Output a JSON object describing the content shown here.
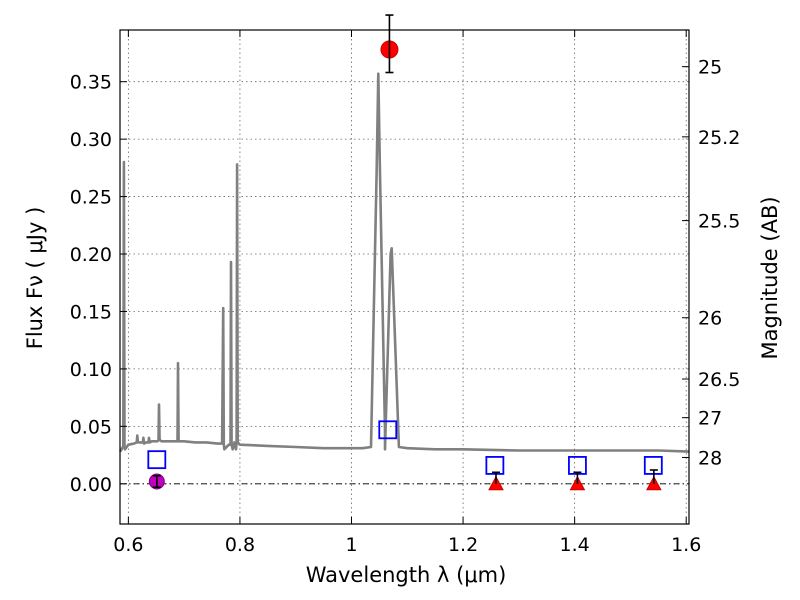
{
  "chart_data": {
    "type": "scatter",
    "xlabel": "Wavelength  λ (μm)",
    "ylabel": "Flux  Fν  ( μJy )",
    "y2label": "Magnitude (AB)",
    "xlim": [
      0.585,
      1.605
    ],
    "ylim": [
      -0.035,
      0.395
    ],
    "grid": true,
    "x_ticks": [
      0.6,
      0.8,
      1.0,
      1.2,
      1.4,
      1.6
    ],
    "x_tick_labels": [
      "0.6",
      "0.8",
      "1",
      "1.2",
      "1.4",
      "1.6"
    ],
    "y_ticks": [
      0.0,
      0.05,
      0.1,
      0.15,
      0.2,
      0.25,
      0.3,
      0.35
    ],
    "y_tick_labels": [
      "0.00",
      "0.05",
      "0.10",
      "0.15",
      "0.20",
      "0.25",
      "0.30",
      "0.35"
    ],
    "mag_ticks": [
      25,
      25.2,
      25.5,
      26,
      26.5,
      27,
      28
    ],
    "mag_tick_labels": [
      "25",
      "25.2",
      "25.5",
      "26",
      "26.5",
      "27",
      "28"
    ],
    "colors": {
      "model": "#808080",
      "model_photometry": "#0000ff",
      "observed_detection": "#ff0000",
      "upper_limit": "#ff0000",
      "optical_point": "#bf00bf",
      "errorbar": "#000000",
      "zero_line": "#000000"
    },
    "model_spectrum": {
      "x": [
        0.585,
        0.588,
        0.591,
        0.592,
        0.593,
        0.594,
        0.6,
        0.61,
        0.615,
        0.616,
        0.617,
        0.62,
        0.626,
        0.627,
        0.628,
        0.632,
        0.636,
        0.637,
        0.638,
        0.642,
        0.648,
        0.652,
        0.654,
        0.655,
        0.656,
        0.66,
        0.67,
        0.685,
        0.688,
        0.689,
        0.69,
        0.7,
        0.72,
        0.74,
        0.76,
        0.768,
        0.77,
        0.771,
        0.772,
        0.78,
        0.783,
        0.784,
        0.785,
        0.787,
        0.789,
        0.79,
        0.791,
        0.793,
        0.794,
        0.795,
        0.796,
        0.8,
        0.85,
        0.9,
        0.95,
        1.0,
        1.02,
        1.035,
        1.045,
        1.048,
        1.051,
        1.06,
        1.06,
        1.07,
        1.072,
        1.08,
        1.085,
        1.1,
        1.15,
        1.2,
        1.3,
        1.4,
        1.45,
        1.5,
        1.55,
        1.605
      ],
      "y": [
        0.028,
        0.03,
        0.033,
        0.28,
        0.033,
        0.03,
        0.034,
        0.035,
        0.036,
        0.042,
        0.036,
        0.036,
        0.036,
        0.04,
        0.035,
        0.036,
        0.036,
        0.04,
        0.036,
        0.037,
        0.037,
        0.037,
        0.038,
        0.069,
        0.038,
        0.037,
        0.037,
        0.037,
        0.037,
        0.105,
        0.037,
        0.037,
        0.036,
        0.036,
        0.035,
        0.035,
        0.153,
        0.035,
        0.03,
        0.034,
        0.034,
        0.193,
        0.034,
        0.03,
        0.034,
        0.036,
        0.034,
        0.03,
        0.036,
        0.278,
        0.036,
        0.034,
        0.033,
        0.032,
        0.031,
        0.031,
        0.031,
        0.032,
        0.27,
        0.357,
        0.27,
        0.045,
        0.03,
        0.2,
        0.205,
        0.1,
        0.032,
        0.031,
        0.03,
        0.03,
        0.029,
        0.029,
        0.029,
        0.029,
        0.029,
        0.028
      ]
    },
    "series": [
      {
        "marker": "open-square",
        "points": [
          {
            "x": 0.651,
            "y": 0.021
          },
          {
            "x": 1.065,
            "y": 0.047
          },
          {
            "x": 1.257,
            "y": 0.016
          },
          {
            "x": 1.405,
            "y": 0.016
          },
          {
            "x": 1.541,
            "y": 0.016
          }
        ]
      },
      {
        "marker": "filled-circle",
        "points": [
          {
            "x": 1.068,
            "y": 0.378,
            "err_low": 0.02,
            "err_high": 0.03
          }
        ]
      },
      {
        "marker": "filled-triangle",
        "points": [
          {
            "x": 1.259,
            "y": 0.0,
            "err_low": 0.0,
            "err_high": 0.01
          },
          {
            "x": 1.405,
            "y": 0.0,
            "err_low": 0.0,
            "err_high": 0.01
          },
          {
            "x": 1.542,
            "y": 0.0,
            "err_low": 0.0,
            "err_high": 0.012
          }
        ]
      },
      {
        "marker": "filled-circle",
        "points": [
          {
            "x": 0.651,
            "y": 0.002,
            "err_low": 0.005,
            "err_high": 0.005
          }
        ]
      }
    ]
  }
}
